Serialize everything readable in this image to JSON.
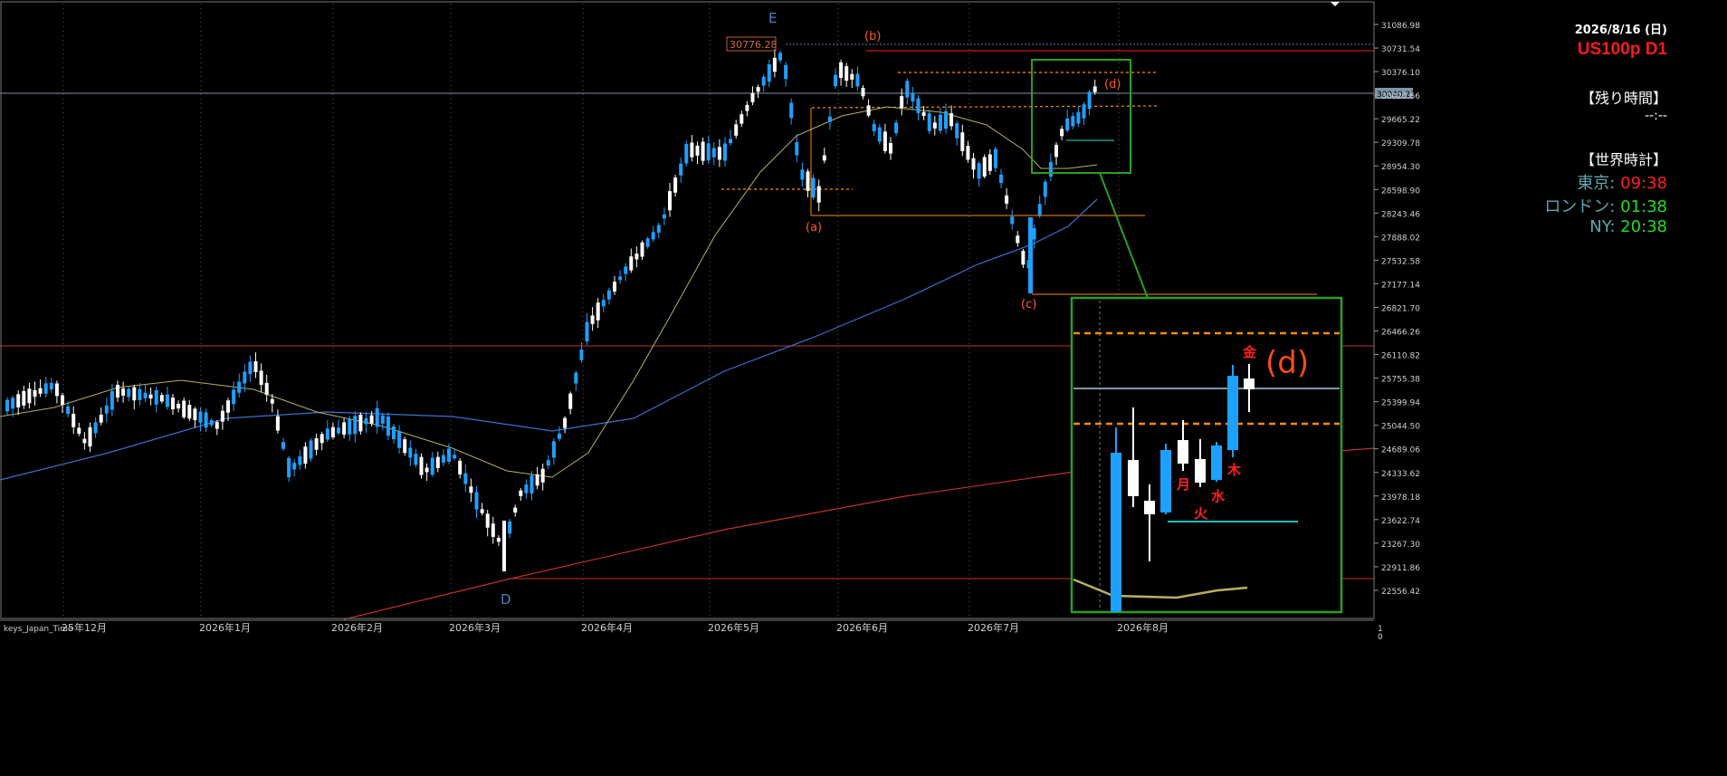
{
  "window": {
    "date": "2026/8/16 (日)",
    "symbol": "US100p D1",
    "remaining_title": "【残り時間】",
    "remaining_value": "--:--",
    "world_clock_title": "【世界時計】",
    "clocks": [
      {
        "city": "東京:",
        "time": "09:38",
        "color": "red"
      },
      {
        "city": "ロンドン:",
        "time": "01:38",
        "color": "green"
      },
      {
        "city": "NY:",
        "time": "20:38",
        "color": "green"
      }
    ],
    "footer_tag": "keys_Japan_Time"
  },
  "colors": {
    "background": "#000000",
    "bull_candle": "#1ea0ff",
    "bear_candle": "#ffffff",
    "grid": "#5a5a5a",
    "ma_short": "#b8b060",
    "ma_mid": "#3e6fd0",
    "ma_long": "#c0332c",
    "fib_level": "#ff8c00",
    "wave_label": "#ff5a2a",
    "highlight_box": "#2aa020",
    "current_price_line": "#8095a8"
  },
  "chart_data": {
    "type": "candlestick",
    "timeframe": "D1",
    "y_axis_ticks": [
      "31086.98",
      "30731.54",
      "30376.10",
      "30020.66",
      "29665.22",
      "29309.78",
      "28954.30",
      "28598.90",
      "28243.46",
      "27888.02",
      "27532.58",
      "27177.14",
      "26821.70",
      "26466.26",
      "26110.82",
      "25755.38",
      "25399.94",
      "25044.50",
      "24689.06",
      "24333.62",
      "23978.18",
      "23622.74",
      "23267.30",
      "22911.86",
      "22556.42"
    ],
    "ylim": [
      22380,
      31240
    ],
    "x_axis_ticks": [
      "25年12月",
      "2026年1月",
      "2026年2月",
      "2026年3月",
      "2026年4月",
      "2026年5月",
      "2026年6月",
      "2026年7月",
      "2026年8月"
    ],
    "current_price_label": "30040.23",
    "peak_label": "30776.28",
    "wave_labels_large": [
      "E",
      "D"
    ],
    "wave_labels_small": [
      "(a)",
      "(b)",
      "(c)",
      "(d)"
    ],
    "inset_day_labels": [
      "月",
      "火",
      "水",
      "木",
      "金"
    ],
    "inset_wave_label": "(d)",
    "right_scale_bottom": "1",
    "right_scale_bottom2": "0",
    "candles_summary": "daily OHLC bars from Dec 2025 to Aug 2026; low near 22911 (D) in late Mar, high 30776.28 (E) mid-May"
  }
}
